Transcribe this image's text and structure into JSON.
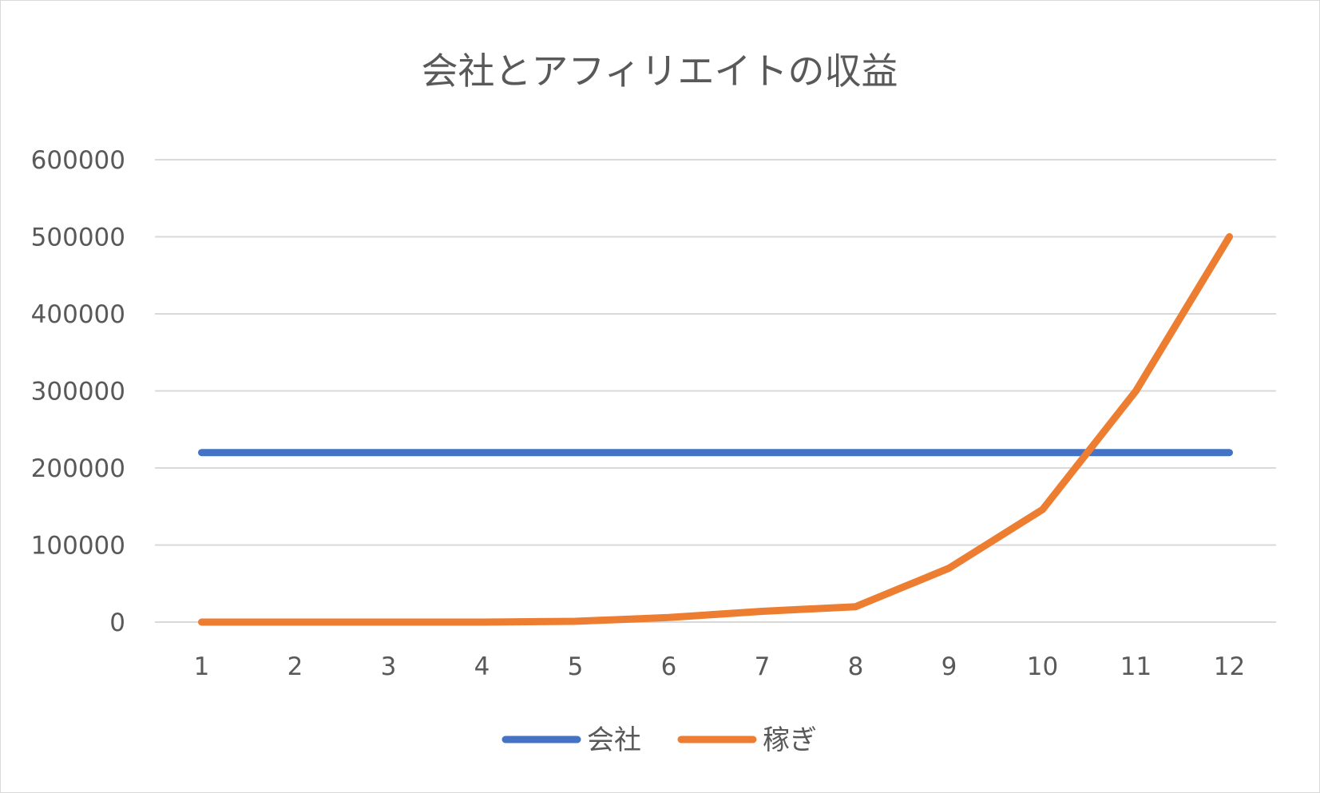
{
  "chart_data": {
    "type": "line",
    "title": "会社とアフィリエイトの収益",
    "categories": [
      "1",
      "2",
      "3",
      "4",
      "5",
      "6",
      "7",
      "8",
      "9",
      "10",
      "11",
      "12"
    ],
    "y_ticks": [
      "0",
      "100000",
      "200000",
      "300000",
      "400000",
      "500000",
      "600000"
    ],
    "ylim": [
      0,
      600000
    ],
    "grid": true,
    "legend_position": "bottom",
    "series": [
      {
        "name": "会社",
        "color": "#4472c4",
        "values": [
          220000,
          220000,
          220000,
          220000,
          220000,
          220000,
          220000,
          220000,
          220000,
          220000,
          220000,
          220000
        ]
      },
      {
        "name": "稼ぎ",
        "color": "#ed7d31",
        "values": [
          0,
          0,
          0,
          0,
          1000,
          6000,
          14000,
          20000,
          70000,
          146000,
          300000,
          500000
        ]
      }
    ]
  }
}
